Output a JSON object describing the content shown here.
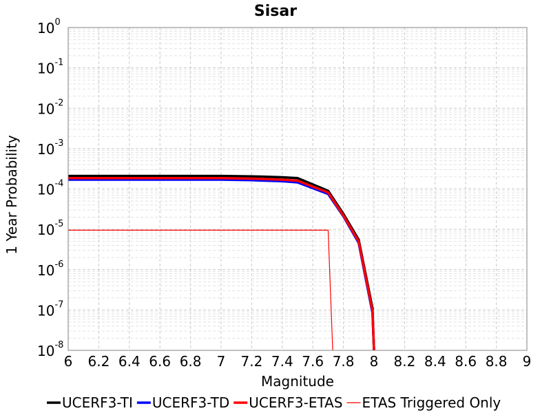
{
  "chart_data": {
    "type": "line",
    "title": "Sisar",
    "xlabel": "Magnitude",
    "ylabel": "1 Year Probability",
    "y_scale": "log",
    "xlim": [
      6,
      9
    ],
    "ylim": [
      1e-08,
      1
    ],
    "x_ticks": [
      "6",
      "6.2",
      "6.4",
      "6.6",
      "6.8",
      "7",
      "7.2",
      "7.4",
      "7.6",
      "7.8",
      "8",
      "8.2",
      "8.4",
      "8.6",
      "8.8",
      "9"
    ],
    "y_ticks": [
      {
        "base": "10",
        "exp": "0",
        "value": 1
      },
      {
        "base": "10",
        "exp": "-1",
        "value": 0.1
      },
      {
        "base": "10",
        "exp": "-2",
        "value": 0.01
      },
      {
        "base": "10",
        "exp": "-3",
        "value": 0.001
      },
      {
        "base": "10",
        "exp": "-4",
        "value": 0.0001
      },
      {
        "base": "10",
        "exp": "-5",
        "value": 1e-05
      },
      {
        "base": "10",
        "exp": "-6",
        "value": 1e-06
      },
      {
        "base": "10",
        "exp": "-7",
        "value": 1e-07
      },
      {
        "base": "10",
        "exp": "-8",
        "value": 1e-08
      }
    ],
    "grid": true,
    "legend_position": "bottom",
    "series": [
      {
        "name": "UCERF3-TI",
        "color": "#000000",
        "weight": "thick",
        "x": [
          6.0,
          6.5,
          7.0,
          7.2,
          7.4,
          7.5,
          7.7,
          7.8,
          7.9,
          7.99,
          8.0
        ],
        "y": [
          0.00021,
          0.00021,
          0.00021,
          0.000205,
          0.000195,
          0.000185,
          9e-05,
          2.4e-05,
          5.5e-06,
          1.1e-07,
          1e-08
        ]
      },
      {
        "name": "UCERF3-TD",
        "color": "#0000ff",
        "weight": "thick",
        "x": [
          6.0,
          6.5,
          7.0,
          7.2,
          7.4,
          7.5,
          7.7,
          7.8,
          7.9,
          7.99,
          8.0
        ],
        "y": [
          0.00017,
          0.00017,
          0.00017,
          0.000165,
          0.000155,
          0.000145,
          7.5e-05,
          2.1e-05,
          4.6e-06,
          8.5e-08,
          1e-08
        ]
      },
      {
        "name": "UCERF3-ETAS",
        "color": "#ff0000",
        "weight": "thick",
        "x": [
          6.0,
          6.5,
          7.0,
          7.2,
          7.4,
          7.5,
          7.7,
          7.8,
          7.9,
          7.99,
          8.0
        ],
        "y": [
          0.000185,
          0.000185,
          0.000185,
          0.00018,
          0.00017,
          0.00016,
          8.2e-05,
          2.2e-05,
          5e-06,
          9.5e-08,
          1e-08
        ]
      },
      {
        "name": "ETAS Triggered Only",
        "color": "#ff0000",
        "weight": "thin",
        "x": [
          6.0,
          7.7,
          7.73
        ],
        "y": [
          9.5e-06,
          9.5e-06,
          1e-08
        ]
      }
    ]
  }
}
